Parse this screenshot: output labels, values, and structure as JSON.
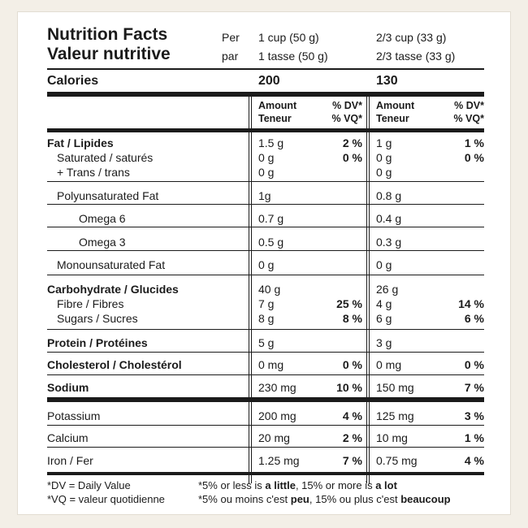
{
  "title_en": "Nutrition Facts",
  "title_fr": "Valeur nutritive",
  "per_en": "Per",
  "per_fr": "par",
  "serving1_en": "1 cup (50 g)",
  "serving1_fr": "1 tasse (50 g)",
  "serving2_en": "2/3 cup (33 g)",
  "serving2_fr": "2/3 tasse (33 g)",
  "calories_label": "Calories",
  "calories1": "200",
  "calories2": "130",
  "amount_en": "Amount",
  "amount_fr": "Teneur",
  "dv_label": "% DV*",
  "vq_label": "% VQ*",
  "rows": {
    "fat": {
      "label": "Fat / Lipides",
      "v1": "1.5 g",
      "p1": "2 %",
      "v2": "1 g",
      "p2": "1 %"
    },
    "saturated": {
      "label": "Saturated / saturés",
      "v1": "0 g",
      "p1": "0 %",
      "v2": "0 g",
      "p2": "0 %"
    },
    "trans": {
      "label": "+ Trans / trans",
      "v1": "0 g",
      "v2": "0 g"
    },
    "poly": {
      "label": "Polyunsaturated Fat",
      "v1": "1g",
      "v2": "0.8 g"
    },
    "omega6": {
      "label": "Omega 6",
      "v1": "0.7 g",
      "v2": "0.4 g"
    },
    "omega3": {
      "label": "Omega 3",
      "v1": "0.5 g",
      "v2": "0.3 g"
    },
    "mono": {
      "label": "Monounsaturated Fat",
      "v1": "0 g",
      "v2": "0 g"
    },
    "carb": {
      "label": "Carbohydrate / Glucides",
      "v1": "40 g",
      "v2": "26 g"
    },
    "fibre": {
      "label": "Fibre / Fibres",
      "v1": "7 g",
      "p1": "25 %",
      "v2": "4 g",
      "p2": "14 %"
    },
    "sugars": {
      "label": "Sugars / Sucres",
      "v1": "8 g",
      "p1": "8 %",
      "v2": "6 g",
      "p2": "6 %"
    },
    "protein": {
      "label": "Protein / Protéines",
      "v1": "5 g",
      "v2": "3 g"
    },
    "cholesterol": {
      "label": "Cholesterol / Cholestérol",
      "v1": "0 mg",
      "p1": "0 %",
      "v2": "0 mg",
      "p2": "0 %"
    },
    "sodium": {
      "label": "Sodium",
      "v1": "230 mg",
      "p1": "10 %",
      "v2": "150 mg",
      "p2": "7 %"
    },
    "potassium": {
      "label": "Potassium",
      "v1": "200 mg",
      "p1": "4 %",
      "v2": "125 mg",
      "p2": "3 %"
    },
    "calcium": {
      "label": "Calcium",
      "v1": "20 mg",
      "p1": "2 %",
      "v2": "10 mg",
      "p2": "1 %"
    },
    "iron": {
      "label": "Iron / Fer",
      "v1": "1.25 mg",
      "p1": "7 %",
      "v2": "0.75 mg",
      "p2": "4 %"
    }
  },
  "footnote": {
    "dv_en": "*DV = Daily Value",
    "vq_fr": "*VQ = valeur quotidienne",
    "en": {
      "a": "*5% or less is ",
      "b": "a little",
      "c": ", 15% or more is ",
      "d": "a lot"
    },
    "fr": {
      "a": "*5% ou moins c'est ",
      "b": "peu",
      "c": ", 15% ou plus c'est ",
      "d": "beaucoup"
    }
  }
}
